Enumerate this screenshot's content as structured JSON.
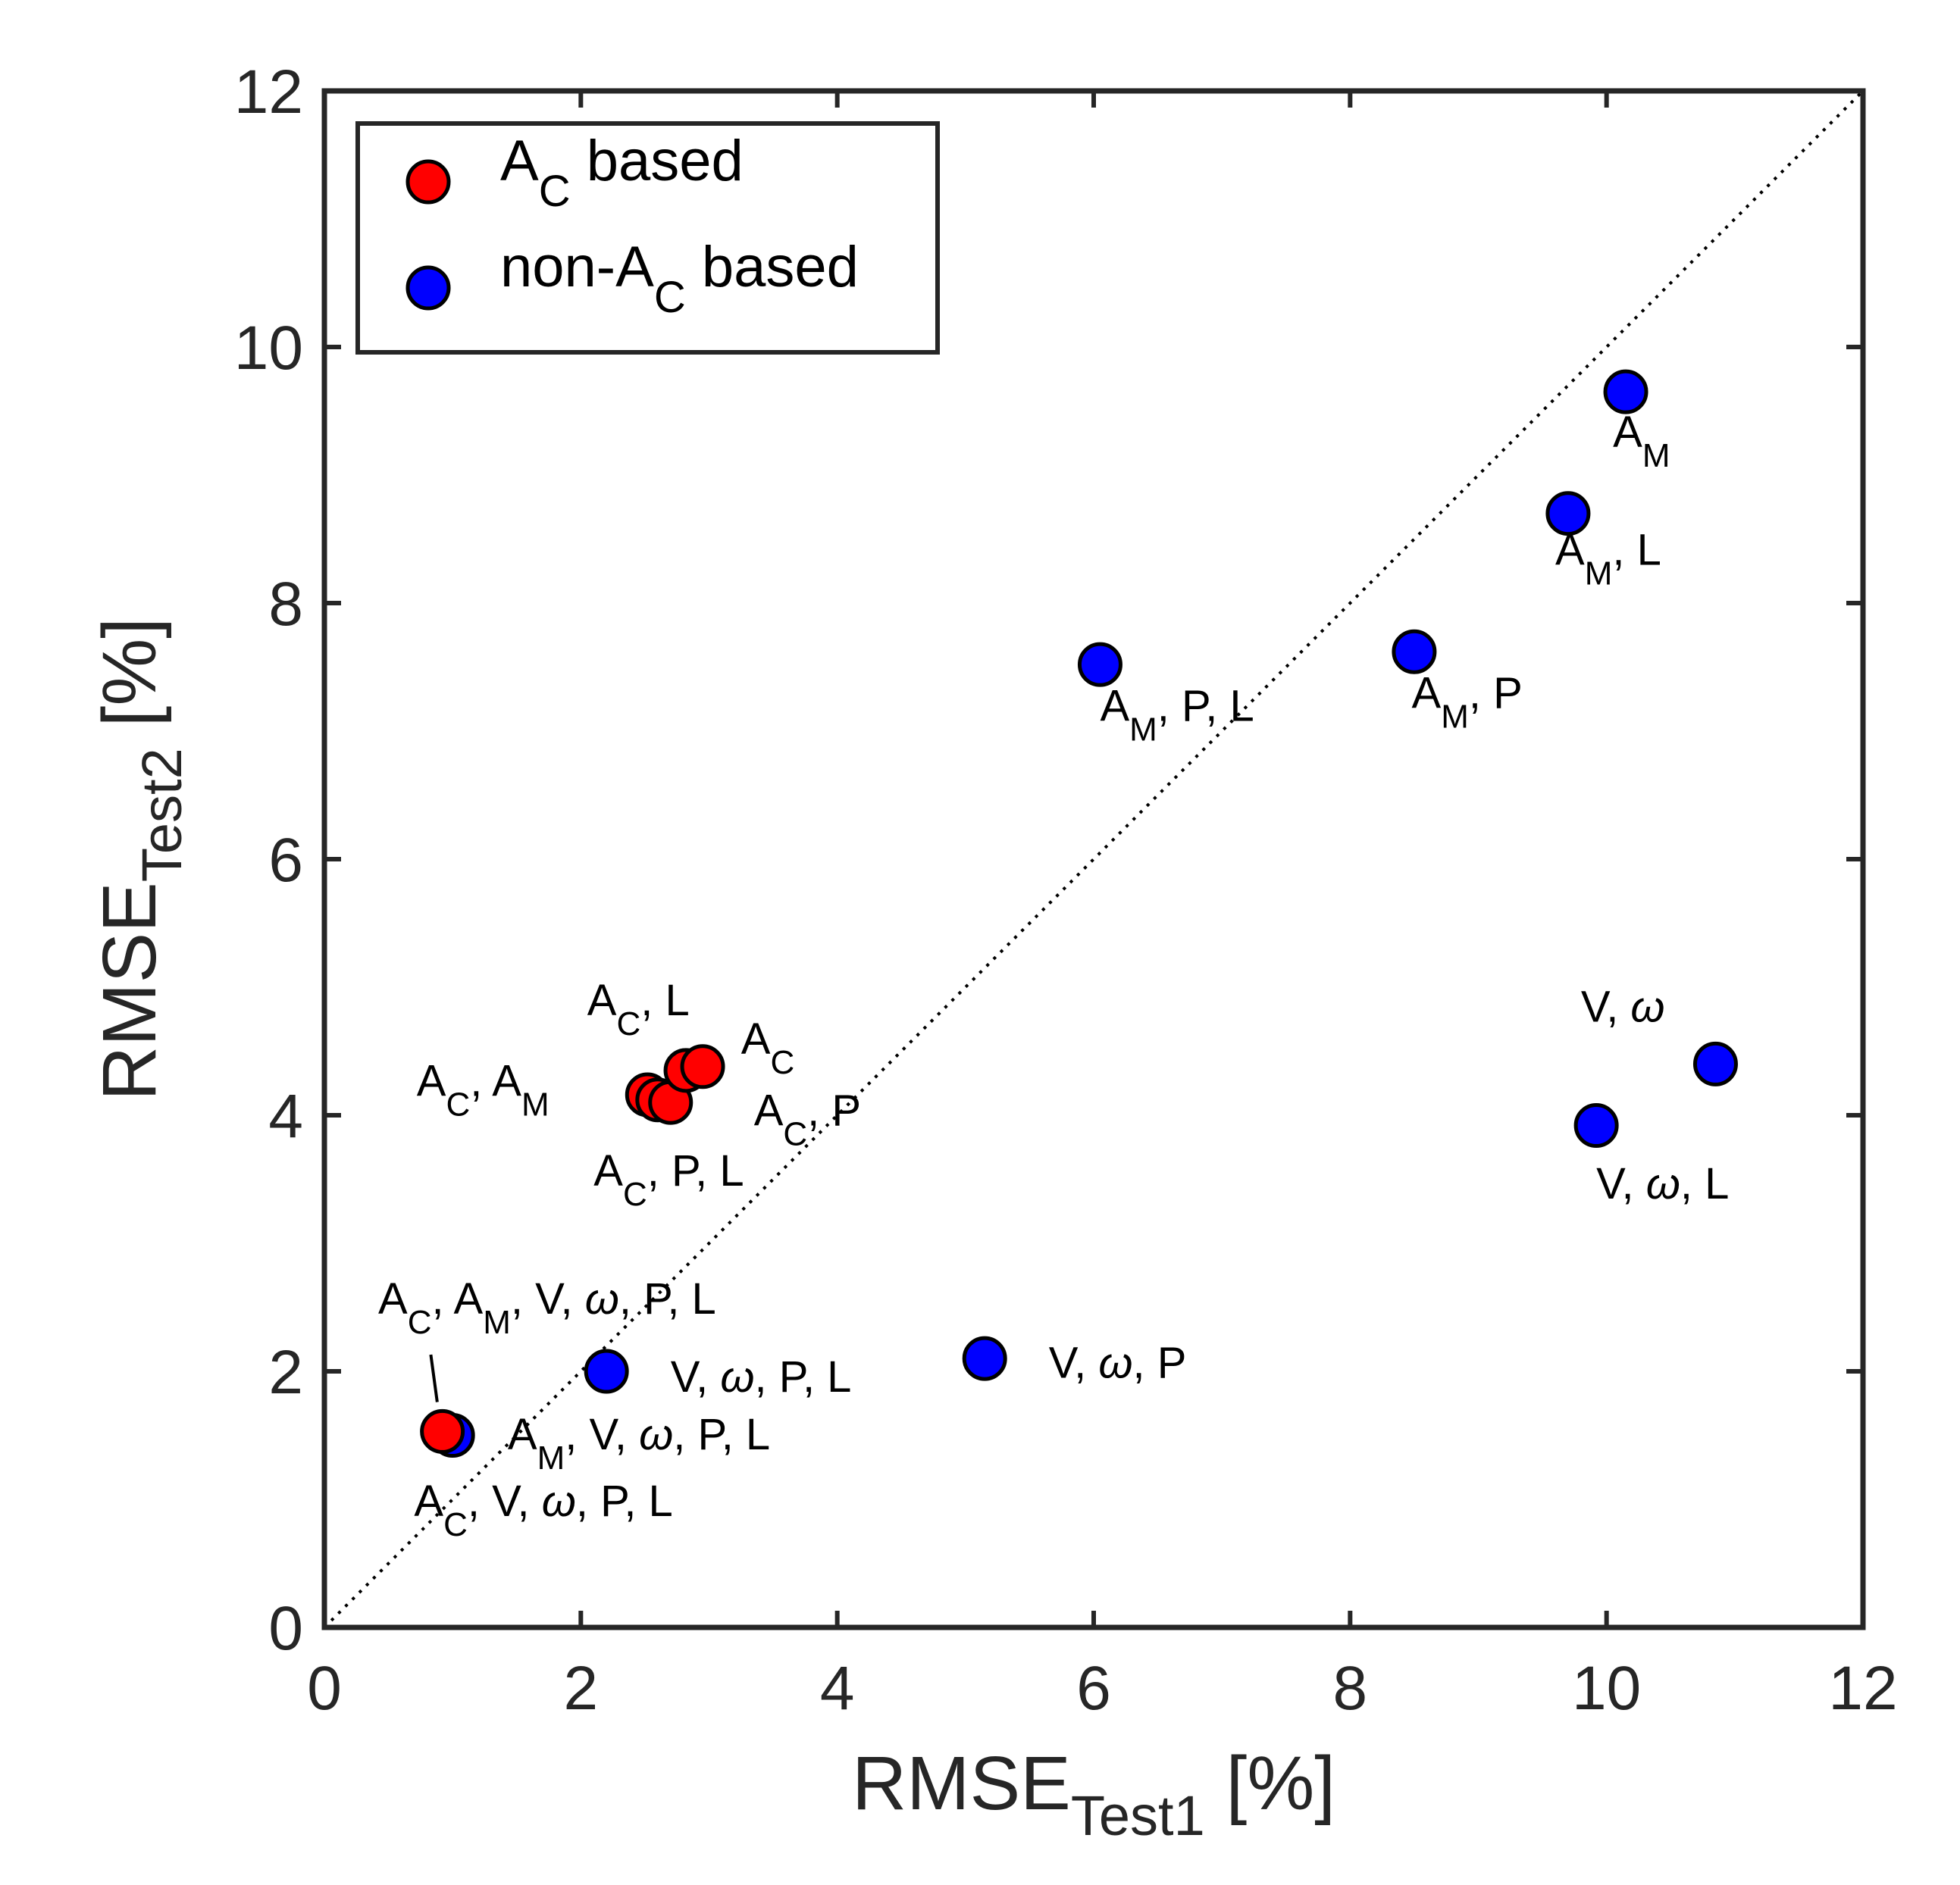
{
  "chart_data": {
    "type": "scatter",
    "title": "",
    "xlabel": {
      "base": "RMSE",
      "sub": "Test1",
      "suffix": " [%]"
    },
    "ylabel": {
      "base": "RMSE",
      "sub": "Test2",
      "suffix": " [%]"
    },
    "xlim": [
      0,
      12
    ],
    "ylim": [
      0,
      12
    ],
    "xticks": [
      0,
      2,
      4,
      6,
      8,
      10,
      12
    ],
    "yticks": [
      0,
      2,
      4,
      6,
      8,
      10,
      12
    ],
    "xtick_labels": [
      "0",
      "2",
      "4",
      "6",
      "8",
      "10",
      "12"
    ],
    "ytick_labels": [
      "0",
      "2",
      "4",
      "6",
      "8",
      "10",
      "12"
    ],
    "grid": false,
    "reference_line": {
      "style": "dotted",
      "from": [
        0,
        0
      ],
      "to": [
        12,
        12
      ]
    },
    "legend": {
      "position": "top-left",
      "entries": [
        {
          "series": "ac",
          "parts": [
            {
              "t": "A"
            },
            {
              "t": "C",
              "sub": true
            },
            {
              "t": " based"
            }
          ]
        },
        {
          "series": "nonac",
          "parts": [
            {
              "t": "non-A"
            },
            {
              "t": "C",
              "sub": true
            },
            {
              "t": " based"
            }
          ]
        }
      ]
    },
    "series": [
      {
        "id": "ac",
        "name": "AC based",
        "color": "#ff0000",
        "points": [
          {
            "x": 2.52,
            "y": 4.16
          },
          {
            "x": 2.6,
            "y": 4.12
          },
          {
            "x": 2.7,
            "y": 4.1
          },
          {
            "x": 2.82,
            "y": 4.35
          },
          {
            "x": 2.95,
            "y": 4.38
          },
          {
            "x": 0.92,
            "y": 1.53
          }
        ]
      },
      {
        "id": "nonac",
        "name": "non-AC based",
        "color": "#0000ff",
        "points": [
          {
            "x": 10.15,
            "y": 9.65
          },
          {
            "x": 9.7,
            "y": 8.7
          },
          {
            "x": 8.5,
            "y": 7.62
          },
          {
            "x": 6.05,
            "y": 7.52
          },
          {
            "x": 10.85,
            "y": 4.4
          },
          {
            "x": 9.92,
            "y": 3.92
          },
          {
            "x": 5.15,
            "y": 2.1
          },
          {
            "x": 2.2,
            "y": 2.0
          },
          {
            "x": 1.0,
            "y": 1.5
          }
        ]
      }
    ],
    "annotations": [
      {
        "parts": [
          {
            "t": "A"
          },
          {
            "t": "M",
            "sub": true
          }
        ],
        "x": 10.05,
        "y": 9.22,
        "anchor": "start"
      },
      {
        "parts": [
          {
            "t": "A"
          },
          {
            "t": "M",
            "sub": true
          },
          {
            "t": ", L"
          }
        ],
        "x": 9.6,
        "y": 8.3,
        "anchor": "start"
      },
      {
        "parts": [
          {
            "t": "A"
          },
          {
            "t": "M",
            "sub": true
          },
          {
            "t": ", P"
          }
        ],
        "x": 8.48,
        "y": 7.18,
        "anchor": "start"
      },
      {
        "parts": [
          {
            "t": "A"
          },
          {
            "t": "M",
            "sub": true
          },
          {
            "t": ", P, L"
          }
        ],
        "x": 6.05,
        "y": 7.08,
        "anchor": "start"
      },
      {
        "parts": [
          {
            "t": "V, "
          },
          {
            "t": "ω",
            "italic": true
          }
        ],
        "x": 9.8,
        "y": 4.73,
        "anchor": "start"
      },
      {
        "parts": [
          {
            "t": "V, "
          },
          {
            "t": "ω",
            "italic": true
          },
          {
            "t": ", L"
          }
        ],
        "x": 9.92,
        "y": 3.35,
        "anchor": "start"
      },
      {
        "parts": [
          {
            "t": "A"
          },
          {
            "t": "C",
            "sub": true
          },
          {
            "t": ", L"
          }
        ],
        "x": 2.05,
        "y": 4.78,
        "anchor": "start"
      },
      {
        "parts": [
          {
            "t": "A"
          },
          {
            "t": "C",
            "sub": true
          }
        ],
        "x": 3.25,
        "y": 4.48,
        "anchor": "start"
      },
      {
        "parts": [
          {
            "t": "A"
          },
          {
            "t": "C",
            "sub": true
          },
          {
            "t": ", A"
          },
          {
            "t": "M",
            "sub": true
          }
        ],
        "x": 0.72,
        "y": 4.15,
        "anchor": "start"
      },
      {
        "parts": [
          {
            "t": "A"
          },
          {
            "t": "C",
            "sub": true
          },
          {
            "t": ", P"
          }
        ],
        "x": 3.35,
        "y": 3.92,
        "anchor": "start"
      },
      {
        "parts": [
          {
            "t": "A"
          },
          {
            "t": "C",
            "sub": true
          },
          {
            "t": ", P, L"
          }
        ],
        "x": 2.1,
        "y": 3.45,
        "anchor": "start"
      },
      {
        "parts": [
          {
            "t": "A"
          },
          {
            "t": "C",
            "sub": true
          },
          {
            "t": ", A"
          },
          {
            "t": "M",
            "sub": true
          },
          {
            "t": ", V, "
          },
          {
            "t": "ω",
            "italic": true
          },
          {
            "t": ", P, L"
          }
        ],
        "x": 0.42,
        "y": 2.45,
        "anchor": "start"
      },
      {
        "parts": [
          {
            "t": "V, "
          },
          {
            "t": "ω",
            "italic": true
          },
          {
            "t": ", P, L"
          }
        ],
        "x": 2.7,
        "y": 1.84,
        "anchor": "start"
      },
      {
        "parts": [
          {
            "t": "V, "
          },
          {
            "t": "ω",
            "italic": true
          },
          {
            "t": ", P"
          }
        ],
        "x": 5.65,
        "y": 1.95,
        "anchor": "start"
      },
      {
        "parts": [
          {
            "t": "A"
          },
          {
            "t": "M",
            "sub": true
          },
          {
            "t": ", V, "
          },
          {
            "t": "ω",
            "italic": true
          },
          {
            "t": ", P, L"
          }
        ],
        "x": 1.43,
        "y": 1.39,
        "anchor": "start"
      },
      {
        "parts": [
          {
            "t": "A"
          },
          {
            "t": "C",
            "sub": true
          },
          {
            "t": ", V, "
          },
          {
            "t": "ω",
            "italic": true
          },
          {
            "t": ", P, L"
          }
        ],
        "x": 0.7,
        "y": 0.87,
        "anchor": "start"
      }
    ],
    "leader_lines": [
      {
        "from": [
          0.83,
          2.13
        ],
        "to": [
          0.88,
          1.76
        ]
      }
    ]
  }
}
